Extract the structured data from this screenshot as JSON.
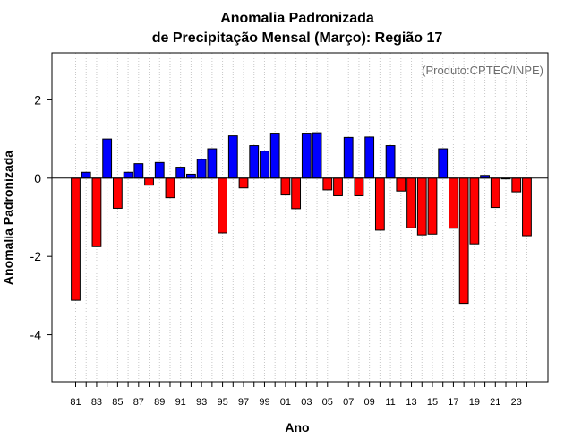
{
  "chart_data": {
    "type": "bar",
    "title_line1": "Anomalia Padronizada",
    "title_line2": "de Precipitação Mensal (Março): Região 17",
    "xlabel": "Ano",
    "ylabel": "Anomalia Padronizada",
    "annotation": "(Produto:CPTEC/INPE)",
    "ylim": [
      -5.2,
      3.2
    ],
    "yticks": [
      2,
      0,
      -2,
      -4
    ],
    "ytick_labels": [
      "2",
      "0",
      "-2",
      "-4"
    ],
    "grid": "vertical dotted",
    "categories": [
      "1981",
      "1982",
      "1983",
      "1984",
      "1985",
      "1986",
      "1987",
      "1988",
      "1989",
      "1990",
      "1991",
      "1992",
      "1993",
      "1994",
      "1995",
      "1996",
      "1997",
      "1998",
      "1999",
      "2000",
      "2001",
      "2002",
      "2003",
      "2004",
      "2005",
      "2006",
      "2007",
      "2008",
      "2009",
      "2010",
      "2011",
      "2012",
      "2013",
      "2014",
      "2015",
      "2016",
      "2017",
      "2018",
      "2019",
      "2020",
      "2021",
      "2022",
      "2023",
      "2024"
    ],
    "xtick_labels": [
      "81",
      "",
      "83",
      "",
      "85",
      "",
      "87",
      "",
      "89",
      "",
      "91",
      "",
      "93",
      "",
      "95",
      "",
      "97",
      "",
      "99",
      "",
      "01",
      "",
      "03",
      "",
      "05",
      "",
      "07",
      "",
      "09",
      "",
      "11",
      "",
      "13",
      "",
      "15",
      "",
      "17",
      "",
      "19",
      "",
      "21",
      "",
      "23",
      ""
    ],
    "values": [
      -3.12,
      0.15,
      -1.75,
      1.0,
      -0.77,
      0.15,
      0.37,
      -0.18,
      0.4,
      -0.5,
      0.28,
      0.1,
      0.48,
      0.75,
      -1.4,
      1.08,
      -0.25,
      0.83,
      0.69,
      1.15,
      -0.43,
      -0.78,
      1.15,
      1.16,
      -0.3,
      -0.45,
      1.04,
      -0.45,
      1.05,
      -1.33,
      0.83,
      -0.33,
      -1.27,
      -1.45,
      -1.43,
      0.75,
      -1.28,
      -3.2,
      -1.68,
      0.07,
      -0.75,
      -0.02,
      -0.35,
      -1.47
    ],
    "positive_color": "#0000ff",
    "negative_color": "#ff0000"
  }
}
